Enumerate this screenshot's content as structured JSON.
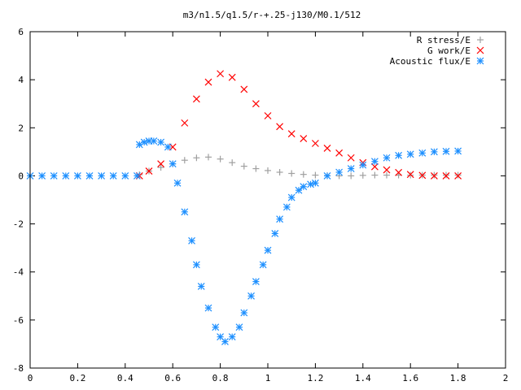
{
  "chart_data": {
    "type": "scatter",
    "title": "m3/n1.5/q1.5/r-+.25-j130/M0.1/512",
    "xlabel": "",
    "ylabel": "",
    "xlim": [
      0,
      2
    ],
    "ylim": [
      -8,
      6
    ],
    "xticks": [
      0,
      0.2,
      0.4,
      0.6,
      0.8,
      1,
      1.2,
      1.4,
      1.6,
      1.8,
      2
    ],
    "xtick_labels": [
      "0",
      "0.2",
      "0.4",
      "0.6",
      "0.8",
      "1",
      "1.2",
      "1.4",
      "1.6",
      "1.8",
      "2"
    ],
    "yticks": [
      -8,
      -6,
      -4,
      -2,
      0,
      2,
      4,
      6
    ],
    "ytick_labels": [
      "-8",
      "-6",
      "-4",
      "-2",
      "0",
      "2",
      "4",
      "6"
    ],
    "grid": false,
    "legend_position": "top-right",
    "series": [
      {
        "name": "R stress/E",
        "marker": "plus",
        "color": "#a0a0a0",
        "x": [
          0.46,
          0.5,
          0.55,
          0.6,
          0.65,
          0.7,
          0.75,
          0.8,
          0.85,
          0.9,
          0.95,
          1.0,
          1.05,
          1.1,
          1.15,
          1.2,
          1.25,
          1.3,
          1.35,
          1.4,
          1.45,
          1.5,
          1.55,
          1.6,
          1.65,
          1.7,
          1.75,
          1.8
        ],
        "y": [
          0.05,
          0.2,
          0.35,
          0.5,
          0.65,
          0.75,
          0.78,
          0.7,
          0.55,
          0.4,
          0.3,
          0.22,
          0.15,
          0.1,
          0.06,
          0.03,
          0.01,
          0.0,
          0.0,
          0.02,
          0.03,
          0.03,
          0.03,
          0.03,
          0.03,
          0.03,
          0.03,
          0.03
        ]
      },
      {
        "name": "G work/E",
        "marker": "cross",
        "color": "#ff0000",
        "x": [
          0.46,
          0.5,
          0.55,
          0.6,
          0.65,
          0.7,
          0.75,
          0.8,
          0.85,
          0.9,
          0.95,
          1.0,
          1.05,
          1.1,
          1.15,
          1.2,
          1.25,
          1.3,
          1.35,
          1.4,
          1.45,
          1.5,
          1.55,
          1.6,
          1.65,
          1.7,
          1.75,
          1.8
        ],
        "y": [
          0.0,
          0.2,
          0.5,
          1.2,
          2.2,
          3.2,
          3.9,
          4.25,
          4.1,
          3.6,
          3.0,
          2.5,
          2.05,
          1.75,
          1.55,
          1.35,
          1.15,
          0.95,
          0.75,
          0.55,
          0.38,
          0.25,
          0.14,
          0.06,
          0.02,
          0.0,
          0.0,
          0.0
        ]
      },
      {
        "name": "Acoustic flux/E",
        "marker": "star",
        "color": "#1e90ff",
        "x": [
          0.0,
          0.05,
          0.1,
          0.15,
          0.2,
          0.25,
          0.3,
          0.35,
          0.4,
          0.45,
          0.46,
          0.48,
          0.5,
          0.52,
          0.55,
          0.58,
          0.6,
          0.62,
          0.65,
          0.68,
          0.7,
          0.72,
          0.75,
          0.78,
          0.8,
          0.82,
          0.85,
          0.88,
          0.9,
          0.93,
          0.95,
          0.98,
          1.0,
          1.03,
          1.05,
          1.08,
          1.1,
          1.13,
          1.15,
          1.18,
          1.2,
          1.25,
          1.3,
          1.35,
          1.4,
          1.45,
          1.5,
          1.55,
          1.6,
          1.65,
          1.7,
          1.75,
          1.8
        ],
        "y": [
          0.0,
          0.0,
          0.0,
          0.0,
          0.0,
          0.0,
          0.0,
          0.0,
          0.0,
          0.0,
          1.3,
          1.4,
          1.45,
          1.45,
          1.4,
          1.2,
          0.5,
          -0.3,
          -1.5,
          -2.7,
          -3.7,
          -4.6,
          -5.5,
          -6.3,
          -6.7,
          -6.9,
          -6.7,
          -6.3,
          -5.7,
          -5.0,
          -4.4,
          -3.7,
          -3.1,
          -2.4,
          -1.8,
          -1.3,
          -0.9,
          -0.6,
          -0.45,
          -0.35,
          -0.3,
          0.0,
          0.15,
          0.3,
          0.45,
          0.6,
          0.75,
          0.85,
          0.9,
          0.95,
          1.0,
          1.02,
          1.03
        ]
      }
    ]
  }
}
